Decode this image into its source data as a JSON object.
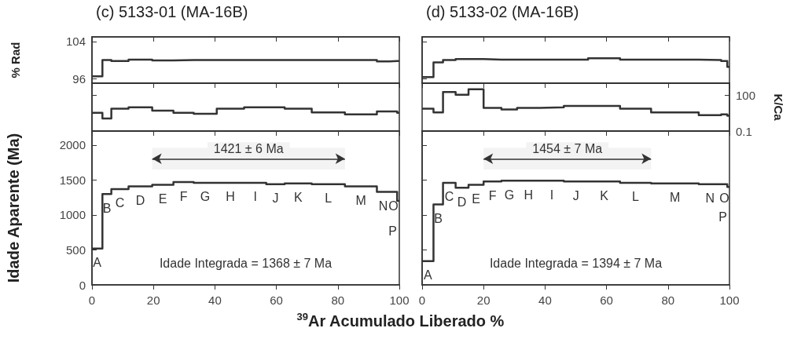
{
  "chart_data": [
    {
      "type": "step",
      "title": "(c) 5133-01 (MA-16B)",
      "ylabel": "% Rad",
      "xlim": [
        0,
        100
      ],
      "xticks": [
        0,
        20,
        40,
        60,
        80,
        100
      ],
      "ylim": [
        95,
        105
      ],
      "yticks": [
        96,
        104
      ],
      "tick_labels": "y",
      "grid": false,
      "marker": "none",
      "series": [
        {
          "color": "#333333",
          "x": [
            0,
            3.4,
            6.3,
            11.9,
            19.6,
            26.5,
            33.1,
            40.6,
            49.5,
            56.7,
            62.7,
            71.5,
            82.3,
            92.7,
            96.8,
            99.3,
            100
          ],
          "values": [
            96.5,
            100,
            99.8,
            100.1,
            99.9,
            100,
            100,
            100,
            100,
            100,
            100,
            100,
            100,
            99.7,
            99.8,
            99.8,
            99.8
          ]
        }
      ]
    },
    {
      "type": "step",
      "xlim": [
        0,
        100
      ],
      "xticks": [
        0,
        20,
        40,
        60,
        80,
        100
      ],
      "ylim": [
        0.1,
        1000
      ],
      "yticks": [
        0.1,
        100
      ],
      "log": "y",
      "tick_labels": false,
      "grid": false,
      "marker": "none",
      "series": [
        {
          "color": "#333333",
          "x": [
            0,
            3.4,
            6.3,
            11.9,
            19.6,
            26.5,
            33.1,
            40.6,
            49.5,
            56.7,
            62.7,
            71.5,
            82.3,
            92.7,
            96.8,
            99.3,
            100
          ],
          "values": [
            3.3,
            1.1,
            7.4,
            9.5,
            5,
            3.3,
            2.8,
            7.4,
            9.5,
            9.5,
            7.4,
            3.6,
            2.5,
            4.3,
            4.3,
            3.3,
            3.3
          ]
        }
      ]
    },
    {
      "type": "step",
      "xlabel": "$^{39}$Ar Acumulado Liberado %",
      "ylabel": "Idade Aparente (Ma)",
      "xlim": [
        0,
        100
      ],
      "xticks": [
        0,
        20,
        40,
        60,
        80,
        100
      ],
      "ylim": [
        0,
        2200
      ],
      "yticks": [
        0,
        500,
        1000,
        1500,
        2000
      ],
      "grid": false,
      "marker": "none",
      "series": [
        {
          "color": "#333333",
          "x": [
            0,
            3.4,
            6.3,
            11.9,
            19.6,
            26.5,
            33.1,
            40.6,
            49.5,
            56.7,
            62.7,
            71.5,
            82.3,
            92.7,
            96.8,
            99.3,
            100
          ],
          "values": [
            520,
            1300,
            1370,
            1410,
            1430,
            1470,
            1460,
            1460,
            1460,
            1440,
            1450,
            1440,
            1410,
            1330,
            1330,
            1200,
            1200
          ]
        }
      ],
      "bands": [
        {
          "axis": "x",
          "from": 19.6,
          "to": 82.3,
          "label": "1421 ± 6 Ma"
        }
      ],
      "annotations": [
        {
          "text": "A",
          "x": 1.7,
          "y": 520
        },
        {
          "text": "B",
          "x": 4.85,
          "y": 1300
        },
        {
          "text": "C",
          "x": 9.1,
          "y": 1370
        },
        {
          "text": "D",
          "x": 15.75,
          "y": 1410
        },
        {
          "text": "E",
          "x": 23.05,
          "y": 1430
        },
        {
          "text": "F",
          "x": 29.8,
          "y": 1470
        },
        {
          "text": "G",
          "x": 36.85,
          "y": 1460
        },
        {
          "text": "H",
          "x": 45.05,
          "y": 1460
        },
        {
          "text": "I",
          "x": 53.1,
          "y": 1460
        },
        {
          "text": "J",
          "x": 59.7,
          "y": 1440
        },
        {
          "text": "K",
          "x": 67.1,
          "y": 1450
        },
        {
          "text": "L",
          "x": 76.9,
          "y": 1440
        },
        {
          "text": "M",
          "x": 87.5,
          "y": 1410
        },
        {
          "text": "N",
          "x": 94.75,
          "y": 1330
        },
        {
          "text": "O",
          "x": 98.05,
          "y": 1330
        },
        {
          "text": "P",
          "x": 99.65,
          "y": 1200
        },
        "Idade Integrada = 1368 ± 7 Ma"
      ]
    },
    {
      "type": "step",
      "title": "(d) 5133-02 (MA-16B)",
      "xlim": [
        0,
        100
      ],
      "xticks": [
        0,
        20,
        40,
        60,
        80,
        100
      ],
      "ylim": [
        95,
        105
      ],
      "yticks": [
        96,
        104
      ],
      "tick_labels": false,
      "grid": false,
      "marker": "none",
      "series": [
        {
          "color": "#333333",
          "x": [
            0,
            3.7,
            6.8,
            10.9,
            15.1,
            20,
            25.8,
            30.9,
            38.3,
            46.1,
            54,
            64.4,
            74.5,
            90,
            97.3,
            99.3,
            100
          ],
          "values": [
            96.3,
            99.5,
            100,
            100.2,
            100.2,
            100.1,
            100.1,
            100.1,
            100.1,
            100.1,
            100.4,
            100.1,
            100.1,
            100,
            99.8,
            98.5,
            98.5
          ]
        }
      ]
    },
    {
      "type": "step",
      "y2label": "K/Ca",
      "xlim": [
        0,
        100
      ],
      "xticks": [
        0,
        20,
        40,
        60,
        80,
        100
      ],
      "y2lim": [
        0.1,
        1000
      ],
      "y2ticks": [
        0.1,
        100
      ],
      "log": "y2",
      "tick_labels": "y",
      "grid": false,
      "marker": "none",
      "series": [
        {
          "color": "#333333",
          "axis": "y2",
          "x": [
            0,
            3.7,
            6.8,
            10.9,
            15.1,
            20,
            25.8,
            30.9,
            38.3,
            46.1,
            54,
            64.4,
            74.5,
            90,
            97.3,
            99.3,
            100
          ],
          "values": [
            7.4,
            3.6,
            185,
            107,
            316,
            8.7,
            6.3,
            8.7,
            9.5,
            12.6,
            12.6,
            7.4,
            3.6,
            2.1,
            2.5,
            1.9,
            1.9
          ]
        }
      ]
    },
    {
      "type": "step",
      "xlim": [
        0,
        100
      ],
      "xticks": [
        0,
        20,
        40,
        60,
        80,
        100
      ],
      "ylim": [
        0,
        2200
      ],
      "yticks": [
        0,
        500,
        1000,
        1500,
        2000
      ],
      "tick_labels": "x",
      "grid": false,
      "marker": "none",
      "series": [
        {
          "color": "#333333",
          "x": [
            0,
            3.7,
            6.8,
            10.9,
            15.1,
            20,
            25.8,
            30.9,
            38.3,
            46.1,
            54,
            64.4,
            74.5,
            90,
            97.3,
            99.3,
            100
          ],
          "values": [
            340,
            1150,
            1460,
            1390,
            1430,
            1480,
            1490,
            1490,
            1490,
            1480,
            1480,
            1460,
            1450,
            1440,
            1440,
            1400,
            1400
          ]
        }
      ],
      "bands": [
        {
          "axis": "x",
          "from": 20,
          "to": 74.5,
          "label": "1454 ± 7 Ma"
        }
      ],
      "annotations": [
        {
          "text": "A",
          "x": 1.85,
          "y": 340
        },
        {
          "text": "B",
          "x": 5.25,
          "y": 1150
        },
        {
          "text": "C",
          "x": 8.85,
          "y": 1460
        },
        {
          "text": "D",
          "x": 12.9,
          "y": 1390
        },
        {
          "text": "E",
          "x": 17.55,
          "y": 1430
        },
        {
          "text": "F",
          "x": 22.9,
          "y": 1480
        },
        {
          "text": "G",
          "x": 28.35,
          "y": 1490
        },
        {
          "text": "H",
          "x": 34.6,
          "y": 1490
        },
        {
          "text": "I",
          "x": 42.2,
          "y": 1490
        },
        {
          "text": "J",
          "x": 50.05,
          "y": 1480
        },
        {
          "text": "K",
          "x": 59.2,
          "y": 1480
        },
        {
          "text": "L",
          "x": 69.45,
          "y": 1460
        },
        {
          "text": "M",
          "x": 82.25,
          "y": 1450
        },
        {
          "text": "N",
          "x": 93.65,
          "y": 1440
        },
        {
          "text": "O",
          "x": 98.3,
          "y": 1440
        },
        {
          "text": "P",
          "x": 99.65,
          "y": 1400
        },
        "Idade Integrada = 1394 ± 7 Ma"
      ]
    }
  ]
}
